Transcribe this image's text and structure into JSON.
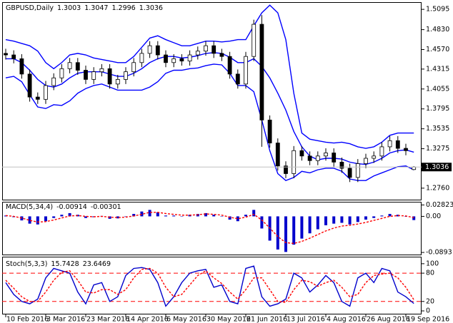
{
  "chart_data": [
    {
      "type": "candlestick",
      "title": "GBPUSD,Daily",
      "categories": [
        "10 Feb 2016",
        null,
        null,
        null,
        null,
        "3 Mar 2016",
        null,
        null,
        null,
        null,
        "23 Mar 2016",
        null,
        null,
        null,
        null,
        "14 Apr 2016",
        null,
        null,
        null,
        null,
        "6 May 2016",
        null,
        null,
        null,
        null,
        "30 May 2016",
        null,
        null,
        null,
        null,
        "21 Jun 2016",
        null,
        null,
        null,
        null,
        "13 Jul 2016",
        null,
        null,
        null,
        null,
        "4 Aug 2016",
        null,
        null,
        null,
        null,
        "26 Aug 2016",
        null,
        null,
        null,
        null,
        "19 Sep 2016",
        null
      ],
      "open": [
        1.452,
        1.45,
        1.445,
        1.425,
        1.395,
        1.392,
        1.41,
        1.42,
        1.432,
        1.44,
        1.43,
        1.418,
        1.428,
        1.432,
        1.412,
        1.418,
        1.428,
        1.44,
        1.452,
        1.462,
        1.45,
        1.44,
        1.445,
        1.442,
        1.45,
        1.455,
        1.462,
        1.452,
        1.448,
        1.425,
        1.412,
        1.448,
        1.49,
        1.365,
        1.335,
        1.305,
        1.295,
        1.325,
        1.318,
        1.312,
        1.318,
        1.322,
        1.31,
        1.302,
        1.29,
        1.308,
        1.315,
        1.318,
        1.33,
        1.338,
        1.328,
        1.3003
      ],
      "high": [
        1.458,
        1.456,
        1.451,
        1.431,
        1.401,
        1.416,
        1.426,
        1.438,
        1.446,
        1.446,
        1.436,
        1.434,
        1.438,
        1.438,
        1.424,
        1.434,
        1.446,
        1.458,
        1.468,
        1.468,
        1.456,
        1.451,
        1.451,
        1.456,
        1.461,
        1.468,
        1.468,
        1.458,
        1.454,
        1.431,
        1.454,
        1.496,
        1.502,
        1.371,
        1.341,
        1.311,
        1.331,
        1.331,
        1.324,
        1.324,
        1.328,
        1.328,
        1.316,
        1.308,
        1.314,
        1.321,
        1.324,
        1.336,
        1.344,
        1.344,
        1.334,
        1.3047
      ],
      "low": [
        1.444,
        1.439,
        1.419,
        1.389,
        1.386,
        1.386,
        1.404,
        1.414,
        1.426,
        1.424,
        1.412,
        1.412,
        1.422,
        1.406,
        1.406,
        1.412,
        1.422,
        1.434,
        1.446,
        1.444,
        1.434,
        1.434,
        1.436,
        1.436,
        1.444,
        1.449,
        1.446,
        1.442,
        1.419,
        1.406,
        1.406,
        1.442,
        1.33,
        1.329,
        1.299,
        1.289,
        1.289,
        1.312,
        1.306,
        1.306,
        1.312,
        1.304,
        1.296,
        1.284,
        1.284,
        1.302,
        1.309,
        1.312,
        1.324,
        1.322,
        1.319,
        1.2996
      ],
      "close": [
        1.45,
        1.445,
        1.425,
        1.395,
        1.392,
        1.41,
        1.42,
        1.432,
        1.44,
        1.43,
        1.418,
        1.428,
        1.432,
        1.412,
        1.418,
        1.428,
        1.44,
        1.452,
        1.462,
        1.45,
        1.44,
        1.445,
        1.442,
        1.45,
        1.455,
        1.462,
        1.452,
        1.448,
        1.425,
        1.412,
        1.448,
        1.49,
        1.365,
        1.335,
        1.305,
        1.295,
        1.325,
        1.318,
        1.312,
        1.318,
        1.322,
        1.31,
        1.302,
        1.29,
        1.308,
        1.315,
        1.318,
        1.33,
        1.338,
        1.328,
        1.325,
        1.3036
      ],
      "series": [
        {
          "color": "#0000ff",
          "values": [
            1.445,
            1.445,
            1.44,
            1.43,
            1.418,
            1.41,
            1.408,
            1.412,
            1.42,
            1.426,
            1.428,
            1.428,
            1.428,
            1.425,
            1.422,
            1.422,
            1.426,
            1.432,
            1.44,
            1.445,
            1.448,
            1.448,
            1.446,
            1.447,
            1.449,
            1.452,
            1.453,
            1.452,
            1.447,
            1.44,
            1.44,
            1.445,
            1.435,
            1.42,
            1.4,
            1.378,
            1.35,
            1.33,
            1.318,
            1.313,
            1.315,
            1.315,
            1.314,
            1.31,
            1.308,
            1.307,
            1.31,
            1.315,
            1.322,
            1.325,
            1.326,
            1.323
          ]
        },
        {
          "color": "#0000ff",
          "values": [
            1.47,
            1.468,
            1.465,
            1.462,
            1.455,
            1.44,
            1.432,
            1.44,
            1.45,
            1.452,
            1.45,
            1.446,
            1.444,
            1.442,
            1.44,
            1.44,
            1.448,
            1.46,
            1.472,
            1.475,
            1.47,
            1.466,
            1.462,
            1.462,
            1.465,
            1.468,
            1.468,
            1.467,
            1.468,
            1.47,
            1.47,
            1.488,
            1.505,
            1.515,
            1.505,
            1.47,
            1.4,
            1.348,
            1.34,
            1.338,
            1.336,
            1.335,
            1.336,
            1.334,
            1.33,
            1.328,
            1.33,
            1.336,
            1.345,
            1.348,
            1.348,
            1.348
          ]
        },
        {
          "color": "#0000ff",
          "values": [
            1.42,
            1.422,
            1.415,
            1.398,
            1.382,
            1.38,
            1.385,
            1.384,
            1.39,
            1.4,
            1.406,
            1.41,
            1.412,
            1.408,
            1.404,
            1.404,
            1.404,
            1.404,
            1.408,
            1.415,
            1.426,
            1.43,
            1.43,
            1.432,
            1.433,
            1.436,
            1.438,
            1.437,
            1.426,
            1.41,
            1.41,
            1.402,
            1.365,
            1.325,
            1.295,
            1.286,
            1.29,
            1.298,
            1.296,
            1.3,
            1.302,
            1.302,
            1.298,
            1.288,
            1.286,
            1.286,
            1.292,
            1.296,
            1.3,
            1.304,
            1.305,
            1.3
          ]
        }
      ],
      "ylim": [
        1.261,
        1.518
      ],
      "yticks": [
        1.5095,
        {
          "value": 1.483,
          "label": "1.4830"
        },
        {
          "value": 1.457,
          "label": "1.4570"
        },
        1.4315,
        1.4055,
        1.3795,
        1.3535,
        1.3275,
        {
          "value": 1.276,
          "label": "1.2760"
        }
      ]
    },
    {
      "type": "macd",
      "title": "MACD(5,34,4)",
      "color": "#0000cc",
      "values": [
        0.002,
        -0.002,
        -0.01,
        -0.018,
        -0.02,
        -0.012,
        -0.004,
        0.004,
        0.008,
        0.004,
        -0.004,
        -0.002,
        0.001,
        -0.006,
        -0.005,
        0.0,
        0.006,
        0.012,
        0.016,
        0.01,
        0.002,
        0.002,
        0.0,
        0.004,
        0.006,
        0.008,
        0.004,
        0.0,
        -0.008,
        -0.012,
        0.004,
        0.016,
        -0.03,
        -0.06,
        -0.082,
        -0.088,
        -0.07,
        -0.055,
        -0.042,
        -0.032,
        -0.022,
        -0.018,
        -0.016,
        -0.02,
        -0.014,
        -0.008,
        -0.004,
        0.002,
        0.006,
        0.004,
        0.0,
        -0.00914
      ],
      "series": [
        {
          "color": "#ff0000",
          "values": [
            0.002,
            0.0,
            -0.004,
            -0.01,
            -0.014,
            -0.013,
            -0.009,
            -0.004,
            0.001,
            0.002,
            0.0,
            -0.001,
            0.0,
            -0.002,
            -0.003,
            -0.002,
            0.001,
            0.005,
            0.01,
            0.01,
            0.007,
            0.005,
            0.003,
            0.003,
            0.004,
            0.006,
            0.005,
            0.003,
            -0.002,
            -0.006,
            -0.002,
            0.005,
            -0.009,
            -0.029,
            -0.05,
            -0.065,
            -0.067,
            -0.062,
            -0.054,
            -0.045,
            -0.036,
            -0.029,
            -0.024,
            -0.022,
            -0.019,
            -0.015,
            -0.01,
            -0.005,
            0.0,
            0.002,
            0.001,
            -0.00301
          ]
        }
      ],
      "ylim": [
        -0.0945,
        0.0343
      ],
      "yticks": [
        0.02823,
        {
          "value": 0,
          "label": "0.00"
        },
        -0.0893
      ]
    },
    {
      "type": "stoch",
      "title": "Stoch(5,3,3)",
      "series": [
        {
          "color": "#0000cc",
          "values": [
            60,
            35,
            20,
            15,
            25,
            70,
            90,
            85,
            80,
            40,
            15,
            55,
            60,
            20,
            30,
            75,
            90,
            92,
            88,
            60,
            10,
            30,
            60,
            80,
            85,
            88,
            50,
            55,
            20,
            15,
            90,
            95,
            30,
            10,
            15,
            25,
            80,
            70,
            40,
            55,
            75,
            60,
            20,
            10,
            70,
            80,
            60,
            90,
            85,
            40,
            30,
            15.7428
          ]
        },
        {
          "color": "#ff0000",
          "values": [
            65,
            48,
            30,
            20,
            20,
            40,
            65,
            82,
            85,
            65,
            40,
            38,
            45,
            45,
            35,
            45,
            70,
            88,
            90,
            80,
            50,
            30,
            35,
            55,
            75,
            85,
            70,
            58,
            40,
            25,
            45,
            70,
            70,
            45,
            20,
            18,
            45,
            65,
            62,
            52,
            60,
            65,
            50,
            30,
            35,
            60,
            75,
            78,
            80,
            70,
            50,
            23.6469
          ]
        }
      ],
      "levels": [
        80,
        20
      ],
      "level_color": "#ff0000",
      "ylim": [
        -6,
        113.4
      ],
      "yticks": [
        100,
        80,
        20,
        0
      ]
    }
  ]
}
